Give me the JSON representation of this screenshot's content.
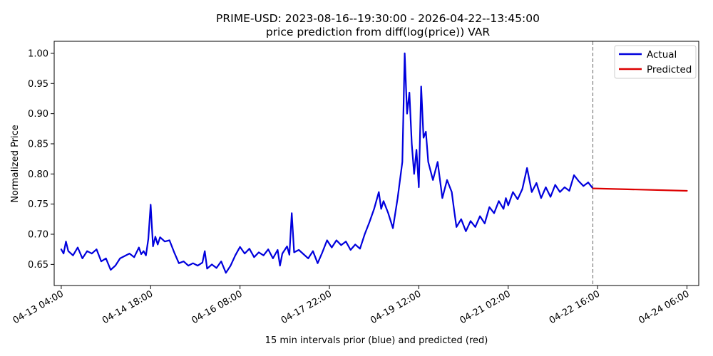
{
  "chart_data": {
    "type": "line",
    "title": "PRIME-USD: 2023-08-16--19:30:00 - 2026-04-22--13:45:00",
    "subtitle": "price prediction from diff(log(price)) VAR",
    "xlabel": "15 min intervals prior (blue) and predicted (red)",
    "ylabel": "Normalized Price",
    "xlim": [
      "04-13 01:00",
      "04-24 11:00"
    ],
    "ylim": [
      0.615,
      1.02
    ],
    "x_ticks": [
      "04-13 04:00",
      "04-14 18:00",
      "04-16 08:00",
      "04-17 22:00",
      "04-19 12:00",
      "04-21 02:00",
      "04-22 16:00",
      "04-24 06:00"
    ],
    "y_ticks": [
      0.65,
      0.7,
      0.75,
      0.8,
      0.85,
      0.9,
      0.95,
      1.0
    ],
    "forecast_start": "04-22 14:00",
    "legend": {
      "position": "top-right",
      "entries": [
        "Actual",
        "Predicted"
      ]
    },
    "series": [
      {
        "name": "Actual",
        "color": "#0000dd",
        "points": [
          [
            "04-13 04:00",
            0.675
          ],
          [
            "04-13 05:00",
            0.668
          ],
          [
            "04-13 06:00",
            0.688
          ],
          [
            "04-13 07:00",
            0.672
          ],
          [
            "04-13 09:00",
            0.665
          ],
          [
            "04-13 11:00",
            0.678
          ],
          [
            "04-13 13:00",
            0.66
          ],
          [
            "04-13 15:00",
            0.672
          ],
          [
            "04-13 17:00",
            0.668
          ],
          [
            "04-13 19:00",
            0.675
          ],
          [
            "04-13 21:00",
            0.655
          ],
          [
            "04-13 23:00",
            0.66
          ],
          [
            "04-14 01:00",
            0.641
          ],
          [
            "04-14 03:00",
            0.648
          ],
          [
            "04-14 05:00",
            0.66
          ],
          [
            "04-14 07:00",
            0.664
          ],
          [
            "04-14 09:00",
            0.668
          ],
          [
            "04-14 11:00",
            0.662
          ],
          [
            "04-14 13:00",
            0.678
          ],
          [
            "04-14 14:00",
            0.667
          ],
          [
            "04-14 15:00",
            0.672
          ],
          [
            "04-14 16:00",
            0.665
          ],
          [
            "04-14 17:00",
            0.692
          ],
          [
            "04-14 18:00",
            0.749
          ],
          [
            "04-14 19:00",
            0.68
          ],
          [
            "04-14 20:00",
            0.696
          ],
          [
            "04-14 21:00",
            0.683
          ],
          [
            "04-14 22:00",
            0.695
          ],
          [
            "04-15 00:00",
            0.688
          ],
          [
            "04-15 02:00",
            0.69
          ],
          [
            "04-15 04:00",
            0.67
          ],
          [
            "04-15 06:00",
            0.652
          ],
          [
            "04-15 08:00",
            0.655
          ],
          [
            "04-15 10:00",
            0.648
          ],
          [
            "04-15 12:00",
            0.652
          ],
          [
            "04-15 14:00",
            0.648
          ],
          [
            "04-15 16:00",
            0.653
          ],
          [
            "04-15 17:00",
            0.672
          ],
          [
            "04-15 18:00",
            0.643
          ],
          [
            "04-15 20:00",
            0.65
          ],
          [
            "04-15 22:00",
            0.644
          ],
          [
            "04-16 00:00",
            0.655
          ],
          [
            "04-16 02:00",
            0.636
          ],
          [
            "04-16 04:00",
            0.648
          ],
          [
            "04-16 06:00",
            0.665
          ],
          [
            "04-16 08:00",
            0.679
          ],
          [
            "04-16 10:00",
            0.668
          ],
          [
            "04-16 12:00",
            0.676
          ],
          [
            "04-16 14:00",
            0.662
          ],
          [
            "04-16 16:00",
            0.67
          ],
          [
            "04-16 18:00",
            0.665
          ],
          [
            "04-16 20:00",
            0.675
          ],
          [
            "04-16 22:00",
            0.66
          ],
          [
            "04-17 00:00",
            0.674
          ],
          [
            "04-17 01:00",
            0.648
          ],
          [
            "04-17 02:00",
            0.668
          ],
          [
            "04-17 04:00",
            0.68
          ],
          [
            "04-17 05:00",
            0.666
          ],
          [
            "04-17 06:00",
            0.735
          ],
          [
            "04-17 07:00",
            0.67
          ],
          [
            "04-17 09:00",
            0.674
          ],
          [
            "04-17 11:00",
            0.667
          ],
          [
            "04-17 13:00",
            0.66
          ],
          [
            "04-17 15:00",
            0.672
          ],
          [
            "04-17 17:00",
            0.652
          ],
          [
            "04-17 19:00",
            0.67
          ],
          [
            "04-17 21:00",
            0.69
          ],
          [
            "04-17 23:00",
            0.678
          ],
          [
            "04-18 01:00",
            0.69
          ],
          [
            "04-18 03:00",
            0.682
          ],
          [
            "04-18 05:00",
            0.688
          ],
          [
            "04-18 07:00",
            0.674
          ],
          [
            "04-18 09:00",
            0.683
          ],
          [
            "04-18 11:00",
            0.676
          ],
          [
            "04-18 13:00",
            0.7
          ],
          [
            "04-18 15:00",
            0.72
          ],
          [
            "04-18 17:00",
            0.742
          ],
          [
            "04-18 19:00",
            0.77
          ],
          [
            "04-18 20:00",
            0.742
          ],
          [
            "04-18 21:00",
            0.755
          ],
          [
            "04-18 23:00",
            0.735
          ],
          [
            "04-19 01:00",
            0.71
          ],
          [
            "04-19 03:00",
            0.76
          ],
          [
            "04-19 05:00",
            0.82
          ],
          [
            "04-19 06:00",
            1.0
          ],
          [
            "04-19 07:00",
            0.9
          ],
          [
            "04-19 08:00",
            0.935
          ],
          [
            "04-19 09:00",
            0.85
          ],
          [
            "04-19 10:00",
            0.8
          ],
          [
            "04-19 11:00",
            0.84
          ],
          [
            "04-19 12:00",
            0.778
          ],
          [
            "04-19 13:00",
            0.945
          ],
          [
            "04-19 14:00",
            0.86
          ],
          [
            "04-19 15:00",
            0.87
          ],
          [
            "04-19 16:00",
            0.82
          ],
          [
            "04-19 18:00",
            0.79
          ],
          [
            "04-19 20:00",
            0.82
          ],
          [
            "04-19 22:00",
            0.76
          ],
          [
            "04-20 00:00",
            0.79
          ],
          [
            "04-20 02:00",
            0.77
          ],
          [
            "04-20 03:00",
            0.74
          ],
          [
            "04-20 04:00",
            0.712
          ],
          [
            "04-20 06:00",
            0.725
          ],
          [
            "04-20 08:00",
            0.705
          ],
          [
            "04-20 10:00",
            0.722
          ],
          [
            "04-20 12:00",
            0.712
          ],
          [
            "04-20 14:00",
            0.73
          ],
          [
            "04-20 16:00",
            0.718
          ],
          [
            "04-20 18:00",
            0.745
          ],
          [
            "04-20 20:00",
            0.735
          ],
          [
            "04-20 22:00",
            0.755
          ],
          [
            "04-21 00:00",
            0.742
          ],
          [
            "04-21 01:00",
            0.76
          ],
          [
            "04-21 02:00",
            0.748
          ],
          [
            "04-21 04:00",
            0.77
          ],
          [
            "04-21 06:00",
            0.758
          ],
          [
            "04-21 08:00",
            0.775
          ],
          [
            "04-21 10:00",
            0.81
          ],
          [
            "04-21 12:00",
            0.77
          ],
          [
            "04-21 14:00",
            0.785
          ],
          [
            "04-21 16:00",
            0.76
          ],
          [
            "04-21 18:00",
            0.778
          ],
          [
            "04-21 20:00",
            0.762
          ],
          [
            "04-21 22:00",
            0.782
          ],
          [
            "04-22 00:00",
            0.77
          ],
          [
            "04-22 02:00",
            0.778
          ],
          [
            "04-22 04:00",
            0.772
          ],
          [
            "04-22 06:00",
            0.798
          ],
          [
            "04-22 08:00",
            0.788
          ],
          [
            "04-22 10:00",
            0.78
          ],
          [
            "04-22 12:00",
            0.786
          ],
          [
            "04-22 14:00",
            0.776
          ]
        ]
      },
      {
        "name": "Predicted",
        "color": "#dd0000",
        "points": [
          [
            "04-22 14:00",
            0.776
          ],
          [
            "04-24 06:00",
            0.772
          ]
        ]
      }
    ]
  }
}
